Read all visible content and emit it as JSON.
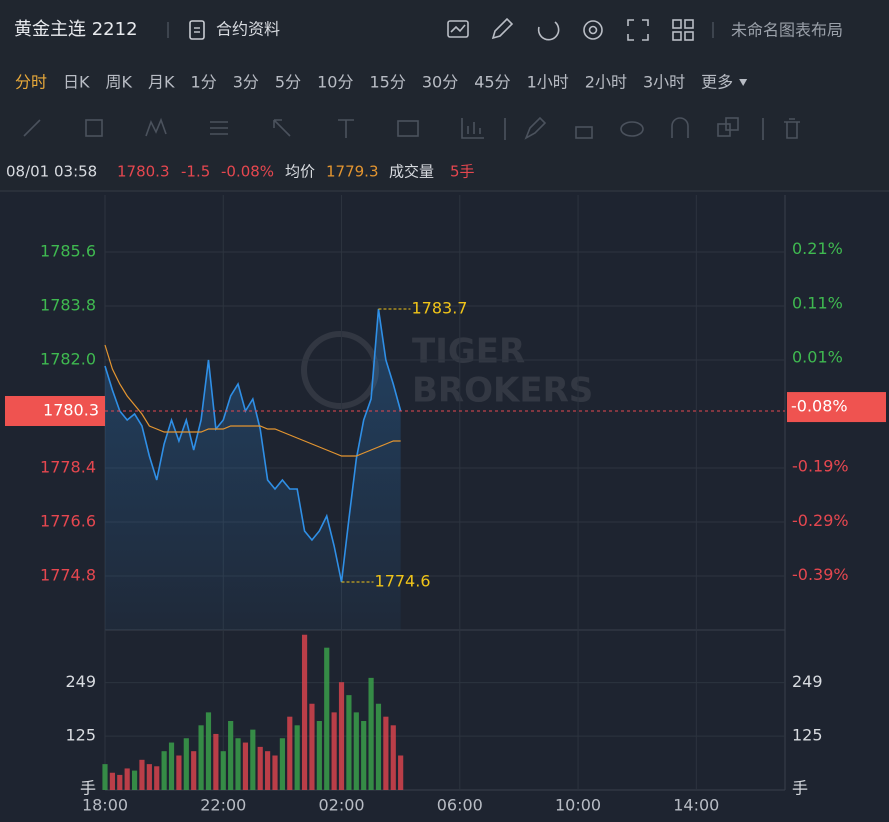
{
  "header": {
    "title": "黄金主连 2212",
    "contract": "合约资料",
    "layout": "未命名图表布局"
  },
  "periods": {
    "items": [
      "分时",
      "日K",
      "周K",
      "月K",
      "1分",
      "3分",
      "5分",
      "10分",
      "15分",
      "30分",
      "45分",
      "1小时",
      "2小时",
      "3小时",
      "更多"
    ],
    "active": 0
  },
  "info": {
    "time": "08/01 03:58",
    "price": "1780.3",
    "change": "-1.5",
    "pct": "-0.08%",
    "avg_label": "均价",
    "avg": "1779.3",
    "volume_label": "成交量",
    "volume": "5手"
  },
  "watermark": {
    "line1": "TIGER",
    "line2": "BROKERS"
  },
  "chart_data": [
    {
      "type": "line",
      "categories": [
        "18:00",
        null,
        null,
        null,
        null,
        null,
        null,
        null,
        null,
        null,
        null,
        null,
        null,
        null,
        null,
        null,
        "22:00",
        null,
        null,
        null,
        null,
        null,
        null,
        null,
        null,
        null,
        null,
        null,
        null,
        null,
        null,
        null,
        "02:00",
        null,
        null,
        null,
        null,
        null,
        null,
        null,
        null,
        null,
        null,
        null,
        null,
        null,
        null,
        null,
        "06:00",
        null,
        null,
        null,
        null,
        null,
        null,
        null,
        null,
        null,
        null,
        null,
        null,
        null,
        null,
        null,
        "10:00",
        null,
        null,
        null,
        null,
        null,
        null,
        null,
        null,
        null,
        null,
        null,
        null,
        null,
        null,
        null,
        "14:00",
        null,
        null,
        null,
        null,
        null,
        null,
        null,
        null,
        null,
        null,
        null
      ],
      "series": [
        {
          "name": "价格",
          "color": "#2f8fe6",
          "area": true,
          "values": [
            1781.8,
            1781.0,
            1780.3,
            1780.0,
            1780.2,
            1779.8,
            1778.8,
            1778.0,
            1779.2,
            1780.0,
            1779.3,
            1780.0,
            1779.0,
            1780.0,
            1782.0,
            1779.7,
            1780.0,
            1780.8,
            1781.2,
            1780.3,
            1780.7,
            1779.7,
            1778.0,
            1777.7,
            1778.0,
            1777.7,
            1777.7,
            1776.3,
            1776.0,
            1776.3,
            1776.8,
            1775.8,
            1774.6,
            1776.7,
            1778.7,
            1780.0,
            1780.7,
            1783.7,
            1782.0,
            1781.2,
            1780.3,
            null,
            null,
            null,
            null,
            null,
            null,
            null,
            null,
            null,
            null,
            null,
            null,
            null,
            null,
            null,
            null,
            null,
            null,
            null,
            null,
            null,
            null,
            null,
            null,
            null,
            null,
            null,
            null,
            null,
            null,
            null,
            null,
            null,
            null,
            null,
            null,
            null,
            null,
            null,
            null,
            null,
            null,
            null,
            null,
            null,
            null,
            null,
            null,
            null,
            null,
            null
          ]
        },
        {
          "name": "均价",
          "color": "#e39530",
          "values": [
            1782.5,
            1781.7,
            1781.2,
            1780.8,
            1780.5,
            1780.2,
            1779.8,
            1779.7,
            1779.6,
            1779.6,
            1779.6,
            1779.6,
            1779.6,
            1779.6,
            1779.7,
            1779.7,
            1779.7,
            1779.8,
            1779.8,
            1779.8,
            1779.8,
            1779.8,
            1779.7,
            1779.7,
            1779.6,
            1779.5,
            1779.4,
            1779.3,
            1779.2,
            1779.1,
            1779.0,
            1778.9,
            1778.8,
            1778.8,
            1778.8,
            1778.9,
            1779.0,
            1779.1,
            1779.2,
            1779.3,
            1779.3,
            null,
            null,
            null,
            null,
            null,
            null,
            null,
            null,
            null,
            null,
            null,
            null,
            null,
            null,
            null,
            null,
            null,
            null,
            null,
            null,
            null,
            null,
            null,
            null,
            null,
            null,
            null,
            null,
            null,
            null,
            null,
            null,
            null,
            null,
            null,
            null,
            null,
            null,
            null,
            null,
            null,
            null,
            null,
            null,
            null,
            null,
            null,
            null,
            null,
            null,
            null
          ]
        }
      ],
      "ylim": [
        1773.0,
        1787.5
      ],
      "yticks": [
        1774.8,
        1776.6,
        1778.4,
        {
          "value": 1782,
          "label": "1782.0"
        },
        1783.8,
        1785.6
      ],
      "y2lim": [
        -0.49,
        0.31
      ],
      "y2ticks": [
        {
          "value": -0.39,
          "label": "-0.39%"
        },
        {
          "value": -0.29,
          "label": "-0.29%"
        },
        {
          "value": -0.19,
          "label": "-0.19%"
        },
        {
          "value": 0.01,
          "label": "0.01%"
        },
        {
          "value": 0.11,
          "label": "0.11%"
        },
        {
          "value": 0.21,
          "label": "0.21%"
        }
      ],
      "last": 1780.3,
      "last_pct": {
        "value": -0.08,
        "label": "-0.08%"
      },
      "high": 1783.7,
      "low": 1774.6,
      "grid": true,
      "up_color": "#3fb950",
      "down_color": "#e5474f"
    },
    {
      "type": "bar",
      "unit": "手",
      "up_color": "#3a9d4a",
      "down_color": "#d6434c",
      "values": [
        60,
        40,
        35,
        50,
        45,
        70,
        60,
        55,
        90,
        110,
        80,
        120,
        90,
        150,
        180,
        130,
        90,
        160,
        120,
        110,
        140,
        100,
        90,
        80,
        120,
        170,
        150,
        360,
        200,
        160,
        330,
        180,
        250,
        220,
        180,
        160,
        260,
        200,
        170,
        150,
        80
      ],
      "ylim": [
        0,
        371
      ],
      "yticks": [
        125,
        249
      ],
      "grid": true
    }
  ]
}
